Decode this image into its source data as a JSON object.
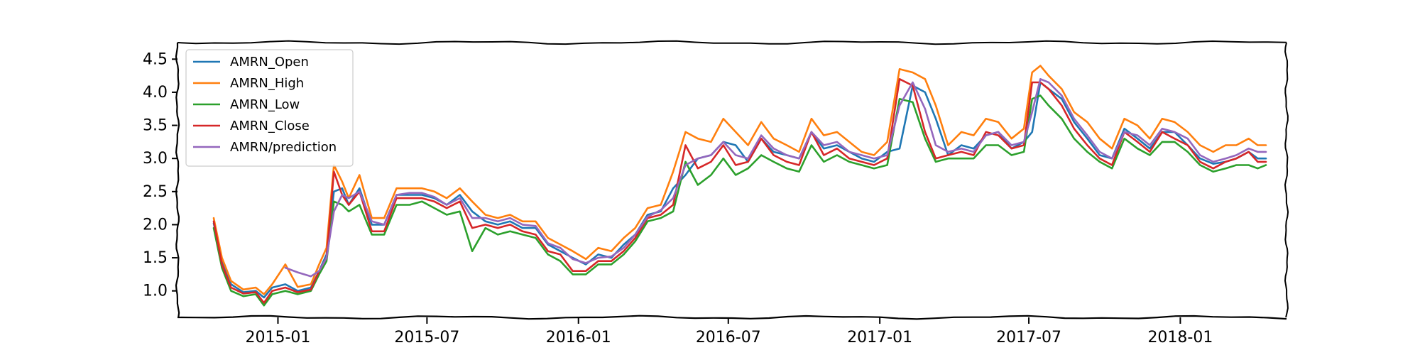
{
  "chart_data": {
    "type": "line",
    "title": "",
    "xlabel": "",
    "ylabel": "",
    "x_type": "date",
    "xlim": [
      "2014-09-01",
      "2018-05-10"
    ],
    "ylim": [
      0.6,
      4.75
    ],
    "yticks": [
      1.0,
      1.5,
      2.0,
      2.5,
      3.0,
      3.5,
      4.0,
      4.5
    ],
    "ytick_labels": [
      "1.0",
      "1.5",
      "2.0",
      "2.5",
      "3.0",
      "3.5",
      "4.0",
      "4.5"
    ],
    "xticks": [
      "2015-01-01",
      "2015-07-01",
      "2016-01-01",
      "2016-07-01",
      "2017-01-01",
      "2017-07-01",
      "2018-01-01"
    ],
    "xtick_labels": [
      "2015-01",
      "2015-07",
      "2016-01",
      "2016-07",
      "2017-01",
      "2017-07",
      "2018-01"
    ],
    "grid": false,
    "legend_position": "top-left",
    "x": [
      "2014-10-15",
      "2014-10-25",
      "2014-11-05",
      "2014-11-20",
      "2014-12-05",
      "2014-12-15",
      "2014-12-25",
      "2015-01-10",
      "2015-01-25",
      "2015-02-10",
      "2015-02-20",
      "2015-03-01",
      "2015-03-10",
      "2015-03-20",
      "2015-03-28",
      "2015-04-10",
      "2015-04-25",
      "2015-05-10",
      "2015-05-25",
      "2015-06-10",
      "2015-06-25",
      "2015-07-10",
      "2015-07-25",
      "2015-08-10",
      "2015-08-25",
      "2015-09-10",
      "2015-09-25",
      "2015-10-10",
      "2015-10-25",
      "2015-11-10",
      "2015-11-25",
      "2015-12-10",
      "2015-12-25",
      "2016-01-10",
      "2016-01-25",
      "2016-02-10",
      "2016-02-25",
      "2016-03-10",
      "2016-03-25",
      "2016-04-10",
      "2016-04-25",
      "2016-05-10",
      "2016-05-25",
      "2016-06-10",
      "2016-06-25",
      "2016-07-10",
      "2016-07-25",
      "2016-08-10",
      "2016-08-25",
      "2016-09-10",
      "2016-09-25",
      "2016-10-10",
      "2016-10-25",
      "2016-11-10",
      "2016-11-25",
      "2016-12-10",
      "2016-12-25",
      "2017-01-10",
      "2017-01-25",
      "2017-02-10",
      "2017-02-25",
      "2017-03-10",
      "2017-03-25",
      "2017-04-10",
      "2017-04-25",
      "2017-05-10",
      "2017-05-25",
      "2017-06-10",
      "2017-06-25",
      "2017-07-05",
      "2017-07-15",
      "2017-07-25",
      "2017-08-10",
      "2017-08-25",
      "2017-09-10",
      "2017-09-25",
      "2017-10-10",
      "2017-10-25",
      "2017-11-10",
      "2017-11-25",
      "2017-12-10",
      "2017-12-25",
      "2018-01-10",
      "2018-01-25",
      "2018-02-10",
      "2018-02-25",
      "2018-03-10",
      "2018-03-25",
      "2018-04-05",
      "2018-04-15"
    ],
    "series": [
      {
        "name": "AMRN_Open",
        "color": "#1f77b4",
        "values": [
          2.02,
          1.45,
          1.1,
          0.98,
          1.0,
          0.9,
          1.05,
          1.1,
          1.0,
          1.05,
          1.3,
          1.55,
          2.5,
          2.55,
          2.3,
          2.55,
          2.0,
          2.0,
          2.45,
          2.45,
          2.45,
          2.4,
          2.3,
          2.45,
          2.2,
          2.05,
          2.0,
          2.05,
          1.95,
          1.95,
          1.7,
          1.6,
          1.5,
          1.4,
          1.55,
          1.5,
          1.7,
          1.85,
          2.15,
          2.2,
          2.55,
          2.75,
          3.0,
          3.05,
          3.25,
          3.2,
          2.95,
          3.3,
          3.1,
          3.05,
          3.0,
          3.4,
          3.15,
          3.2,
          3.1,
          3.0,
          2.95,
          3.1,
          3.15,
          4.1,
          4.0,
          3.6,
          3.05,
          3.2,
          3.15,
          3.35,
          3.4,
          3.15,
          3.25,
          3.4,
          4.15,
          4.05,
          3.9,
          3.55,
          3.3,
          3.05,
          3.0,
          3.45,
          3.3,
          3.15,
          3.4,
          3.4,
          3.2,
          3.0,
          2.92,
          2.95,
          3.0,
          3.1,
          3.0,
          3.0
        ]
      },
      {
        "name": "AMRN_High",
        "color": "#ff7f0e",
        "values": [
          2.1,
          1.5,
          1.15,
          1.02,
          1.05,
          0.95,
          1.1,
          1.4,
          1.06,
          1.1,
          1.4,
          1.65,
          2.9,
          2.65,
          2.4,
          2.75,
          2.1,
          2.1,
          2.55,
          2.55,
          2.55,
          2.5,
          2.4,
          2.55,
          2.35,
          2.15,
          2.1,
          2.15,
          2.05,
          2.05,
          1.8,
          1.7,
          1.6,
          1.48,
          1.65,
          1.6,
          1.8,
          1.95,
          2.25,
          2.3,
          2.8,
          3.4,
          3.3,
          3.25,
          3.6,
          3.4,
          3.2,
          3.55,
          3.3,
          3.2,
          3.1,
          3.6,
          3.35,
          3.4,
          3.25,
          3.1,
          3.05,
          3.25,
          4.35,
          4.3,
          4.2,
          3.8,
          3.2,
          3.4,
          3.35,
          3.6,
          3.55,
          3.3,
          3.45,
          4.3,
          4.4,
          4.25,
          4.05,
          3.7,
          3.55,
          3.3,
          3.15,
          3.6,
          3.5,
          3.3,
          3.6,
          3.55,
          3.4,
          3.2,
          3.1,
          3.2,
          3.2,
          3.3,
          3.2,
          3.2
        ]
      },
      {
        "name": "AMRN_Low",
        "color": "#2ca02c",
        "values": [
          1.95,
          1.35,
          1.0,
          0.92,
          0.95,
          0.78,
          0.95,
          1.0,
          0.95,
          1.0,
          1.25,
          1.45,
          2.35,
          2.3,
          2.2,
          2.3,
          1.85,
          1.85,
          2.3,
          2.3,
          2.35,
          2.25,
          2.15,
          2.2,
          1.6,
          1.95,
          1.85,
          1.9,
          1.85,
          1.8,
          1.55,
          1.45,
          1.25,
          1.25,
          1.4,
          1.4,
          1.55,
          1.75,
          2.05,
          2.1,
          2.2,
          2.95,
          2.6,
          2.75,
          3.0,
          2.75,
          2.85,
          3.05,
          2.95,
          2.85,
          2.8,
          3.2,
          2.95,
          3.05,
          2.95,
          2.9,
          2.85,
          2.9,
          3.9,
          3.85,
          3.3,
          2.95,
          3.0,
          3.0,
          3.0,
          3.2,
          3.2,
          3.05,
          3.1,
          3.9,
          3.95,
          3.8,
          3.6,
          3.3,
          3.1,
          2.95,
          2.85,
          3.3,
          3.15,
          3.05,
          3.25,
          3.25,
          3.1,
          2.9,
          2.8,
          2.85,
          2.9,
          2.9,
          2.85,
          2.9
        ]
      },
      {
        "name": "AMRN_Close",
        "color": "#d62728",
        "values": [
          2.05,
          1.4,
          1.05,
          0.96,
          0.98,
          0.82,
          1.0,
          1.05,
          0.98,
          1.02,
          1.3,
          1.5,
          2.8,
          2.45,
          2.3,
          2.5,
          1.9,
          1.9,
          2.4,
          2.4,
          2.4,
          2.35,
          2.25,
          2.35,
          1.95,
          2.0,
          1.95,
          2.0,
          1.9,
          1.85,
          1.6,
          1.55,
          1.3,
          1.3,
          1.45,
          1.45,
          1.6,
          1.8,
          2.1,
          2.15,
          2.3,
          3.2,
          2.85,
          2.95,
          3.2,
          2.9,
          2.95,
          3.3,
          3.05,
          2.95,
          2.9,
          3.4,
          3.05,
          3.15,
          3.0,
          2.95,
          2.9,
          3.0,
          4.2,
          4.1,
          3.4,
          3.0,
          3.05,
          3.1,
          3.05,
          3.4,
          3.35,
          3.15,
          3.2,
          4.15,
          4.15,
          4.05,
          3.8,
          3.45,
          3.2,
          3.0,
          2.9,
          3.4,
          3.25,
          3.1,
          3.4,
          3.3,
          3.2,
          2.95,
          2.85,
          2.95,
          3.0,
          3.1,
          2.95,
          2.95
        ]
      },
      {
        "name": "AMRN/prediction",
        "color": "#9467bd",
        "values": [
          null,
          null,
          null,
          null,
          null,
          null,
          null,
          1.35,
          1.28,
          1.22,
          1.3,
          1.5,
          2.2,
          2.45,
          2.4,
          2.5,
          2.05,
          2.0,
          2.45,
          2.48,
          2.48,
          2.42,
          2.3,
          2.4,
          2.1,
          2.1,
          2.05,
          2.1,
          2.0,
          1.98,
          1.72,
          1.65,
          1.48,
          1.42,
          1.5,
          1.52,
          1.65,
          1.85,
          2.12,
          2.22,
          2.4,
          2.9,
          3.0,
          3.05,
          3.25,
          3.05,
          3.0,
          3.35,
          3.15,
          3.05,
          3.0,
          3.4,
          3.2,
          3.25,
          3.1,
          3.05,
          3.0,
          3.05,
          3.8,
          4.15,
          3.75,
          3.2,
          3.1,
          3.15,
          3.1,
          3.35,
          3.4,
          3.2,
          3.25,
          3.7,
          4.2,
          4.15,
          3.95,
          3.6,
          3.35,
          3.1,
          3.0,
          3.4,
          3.35,
          3.2,
          3.45,
          3.4,
          3.3,
          3.05,
          2.95,
          3.0,
          3.05,
          3.15,
          3.1,
          3.1
        ]
      }
    ]
  }
}
